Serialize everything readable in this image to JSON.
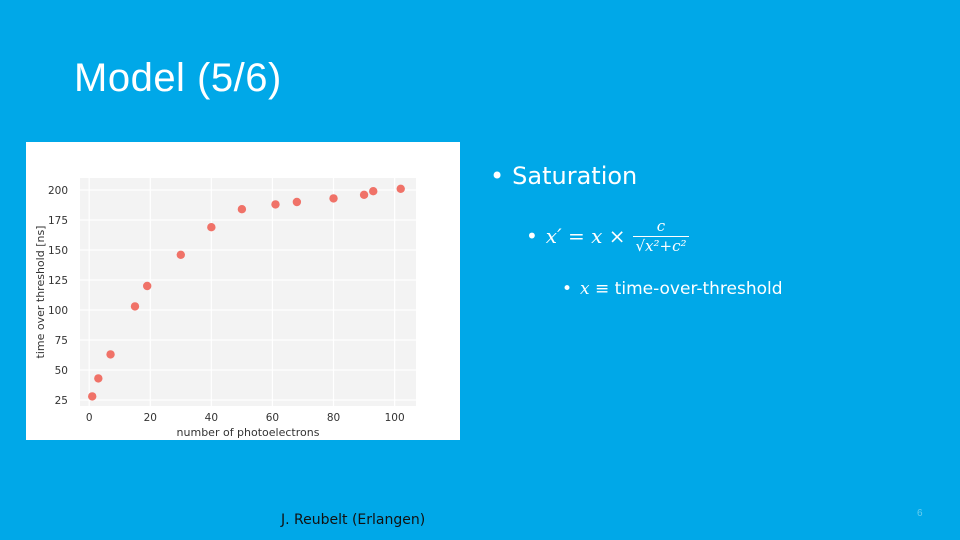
{
  "slide": {
    "title": "Model (5/6)",
    "page_number": "6",
    "colors": {
      "background": "#00a8e8",
      "text": "#ffffff",
      "points": "#f07268"
    }
  },
  "figure": {
    "credit": "J. Reubelt (Erlangen)"
  },
  "bullets": {
    "level1": "Saturation",
    "level2": {
      "lhs": "x′ = x ×",
      "numerator": "c",
      "denominator": "√x²+c²"
    },
    "level3": {
      "var": "x",
      "rest": " ≡ time-over-threshold"
    },
    "bullet_glyph": "•"
  },
  "chart_data": {
    "type": "scatter",
    "xlabel": "number of photoelectrons",
    "ylabel": "time over threshold [ns]",
    "xlim": [
      -3,
      107
    ],
    "ylim": [
      20,
      210
    ],
    "xticks": [
      0,
      20,
      40,
      60,
      80,
      100
    ],
    "yticks": [
      25,
      50,
      75,
      100,
      125,
      150,
      175,
      200
    ],
    "grid": true,
    "series": [
      {
        "color": "#f07268",
        "points": [
          [
            1,
            28
          ],
          [
            3,
            43
          ],
          [
            7,
            63
          ],
          [
            15,
            103
          ],
          [
            19,
            120
          ],
          [
            30,
            146
          ],
          [
            40,
            169
          ],
          [
            50,
            184
          ],
          [
            61,
            188
          ],
          [
            68,
            190
          ],
          [
            80,
            193
          ],
          [
            90,
            196
          ],
          [
            93,
            199
          ],
          [
            102,
            201
          ]
        ]
      }
    ]
  }
}
